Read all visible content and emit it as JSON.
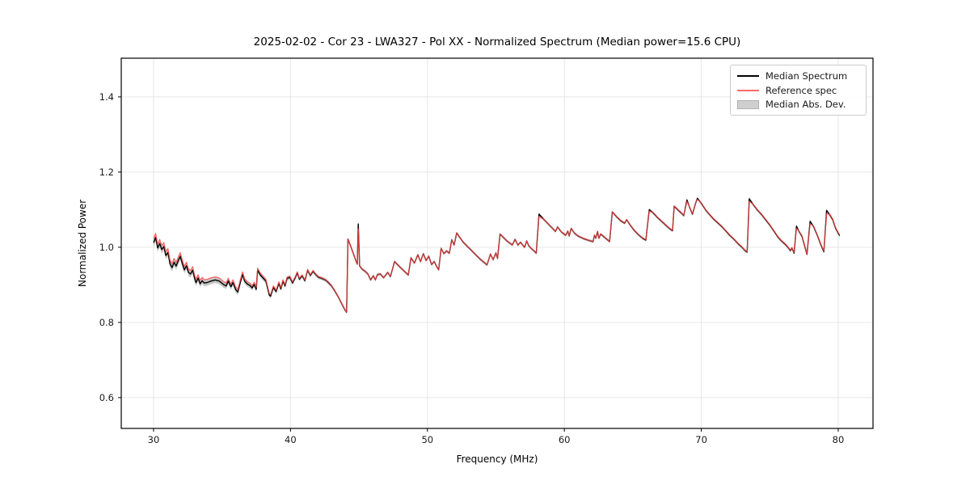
{
  "figure": {
    "bg": "#ffffff"
  },
  "chart_data": {
    "type": "line",
    "title": "2025-02-02 - Cor 23 - LWA327 - Pol XX - Normalized Spectrum (Median power=15.6 CPU)",
    "xlabel": "Frequency (MHz)",
    "ylabel": "Normalized Power",
    "xlim": [
      27.64,
      82.54
    ],
    "ylim": [
      0.518,
      1.503
    ],
    "xticks": [
      {
        "v": 30,
        "label": "30"
      },
      {
        "v": 40,
        "label": "40"
      },
      {
        "v": 50,
        "label": "50"
      },
      {
        "v": 60,
        "label": "60"
      },
      {
        "v": 70,
        "label": "70"
      },
      {
        "v": 80,
        "label": "80"
      }
    ],
    "yticks": [
      {
        "v": 0.6,
        "label": "0.6"
      },
      {
        "v": 0.8,
        "label": "0.8"
      },
      {
        "v": 1.0,
        "label": "1.0"
      },
      {
        "v": 1.2,
        "label": "1.2"
      },
      {
        "v": 1.4,
        "label": "1.4"
      }
    ],
    "grid": true,
    "grid_color": "#e6e6e6",
    "spine_color": "#000000",
    "tick_color": "#1a1a1a",
    "legend": {
      "position": "upper right",
      "entries": [
        {
          "label": "Median Spectrum",
          "type": "line",
          "color": "#000000",
          "opacity": 1
        },
        {
          "label": "Reference spec",
          "type": "line",
          "color": "#ff4545",
          "opacity": 0.8
        },
        {
          "label": "Median Abs. Dev.",
          "type": "patch",
          "fill": "#cfcfcf",
          "border": "#b0b0b0"
        }
      ]
    },
    "series": [
      {
        "name": "Median Spectrum",
        "color": "#000000",
        "width": 1.4,
        "points": [
          [
            30.0,
            1.012
          ],
          [
            30.15,
            1.026
          ],
          [
            30.3,
            0.998
          ],
          [
            30.45,
            1.01
          ],
          [
            30.6,
            0.994
          ],
          [
            30.75,
            1.002
          ],
          [
            30.9,
            0.978
          ],
          [
            31.05,
            0.986
          ],
          [
            31.2,
            0.956
          ],
          [
            31.35,
            0.946
          ],
          [
            31.5,
            0.96
          ],
          [
            31.65,
            0.95
          ],
          [
            31.8,
            0.964
          ],
          [
            31.95,
            0.976
          ],
          [
            32.1,
            0.956
          ],
          [
            32.25,
            0.94
          ],
          [
            32.4,
            0.951
          ],
          [
            32.55,
            0.933
          ],
          [
            32.7,
            0.929
          ],
          [
            32.85,
            0.939
          ],
          [
            33.0,
            0.917
          ],
          [
            33.1,
            0.906
          ],
          [
            33.25,
            0.918
          ],
          [
            33.4,
            0.903
          ],
          [
            33.55,
            0.911
          ],
          [
            33.7,
            0.905
          ],
          [
            33.9,
            0.906
          ],
          [
            34.2,
            0.91
          ],
          [
            34.5,
            0.913
          ],
          [
            34.8,
            0.91
          ],
          [
            35.1,
            0.901
          ],
          [
            35.3,
            0.897
          ],
          [
            35.45,
            0.91
          ],
          [
            35.65,
            0.895
          ],
          [
            35.8,
            0.906
          ],
          [
            36.0,
            0.887
          ],
          [
            36.15,
            0.881
          ],
          [
            36.35,
            0.908
          ],
          [
            36.5,
            0.928
          ],
          [
            36.65,
            0.91
          ],
          [
            36.85,
            0.902
          ],
          [
            37.05,
            0.898
          ],
          [
            37.2,
            0.892
          ],
          [
            37.35,
            0.901
          ],
          [
            37.5,
            0.888
          ],
          [
            37.6,
            0.939
          ],
          [
            37.8,
            0.926
          ],
          [
            38.0,
            0.918
          ],
          [
            38.2,
            0.91
          ],
          [
            38.45,
            0.873
          ],
          [
            38.55,
            0.87
          ],
          [
            38.75,
            0.893
          ],
          [
            38.95,
            0.882
          ],
          [
            39.15,
            0.904
          ],
          [
            39.3,
            0.889
          ],
          [
            39.45,
            0.91
          ],
          [
            39.6,
            0.897
          ],
          [
            39.75,
            0.917
          ],
          [
            39.95,
            0.92
          ],
          [
            40.15,
            0.905
          ],
          [
            40.35,
            0.919
          ],
          [
            40.5,
            0.932
          ],
          [
            40.65,
            0.915
          ],
          [
            40.85,
            0.924
          ],
          [
            41.05,
            0.911
          ],
          [
            41.25,
            0.939
          ],
          [
            41.45,
            0.925
          ],
          [
            41.65,
            0.936
          ],
          [
            41.85,
            0.927
          ],
          [
            42.05,
            0.92
          ],
          [
            42.3,
            0.917
          ],
          [
            42.55,
            0.913
          ],
          [
            42.8,
            0.905
          ],
          [
            43.0,
            0.897
          ],
          [
            43.25,
            0.883
          ],
          [
            43.5,
            0.867
          ],
          [
            43.75,
            0.849
          ],
          [
            44.0,
            0.832
          ],
          [
            44.1,
            0.827
          ],
          [
            44.2,
            1.022
          ],
          [
            44.35,
            1.007
          ],
          [
            44.55,
            0.987
          ],
          [
            44.75,
            0.967
          ],
          [
            44.88,
            0.955
          ],
          [
            44.95,
            1.062
          ],
          [
            45.05,
            0.95
          ],
          [
            45.25,
            0.941
          ],
          [
            45.45,
            0.936
          ],
          [
            45.65,
            0.929
          ],
          [
            45.85,
            0.913
          ],
          [
            46.05,
            0.924
          ],
          [
            46.2,
            0.913
          ],
          [
            46.35,
            0.927
          ],
          [
            46.55,
            0.929
          ],
          [
            46.8,
            0.919
          ],
          [
            47.1,
            0.933
          ],
          [
            47.3,
            0.922
          ],
          [
            47.6,
            0.962
          ],
          [
            48.0,
            0.947
          ],
          [
            48.4,
            0.933
          ],
          [
            48.6,
            0.926
          ],
          [
            48.8,
            0.972
          ],
          [
            49.05,
            0.958
          ],
          [
            49.3,
            0.98
          ],
          [
            49.5,
            0.962
          ],
          [
            49.7,
            0.983
          ],
          [
            49.9,
            0.965
          ],
          [
            50.1,
            0.976
          ],
          [
            50.3,
            0.954
          ],
          [
            50.5,
            0.962
          ],
          [
            50.7,
            0.947
          ],
          [
            50.82,
            0.94
          ],
          [
            51.0,
            0.997
          ],
          [
            51.2,
            0.983
          ],
          [
            51.4,
            0.99
          ],
          [
            51.6,
            0.984
          ],
          [
            51.78,
            1.02
          ],
          [
            51.95,
            1.006
          ],
          [
            52.14,
            1.038
          ],
          [
            52.6,
            1.014
          ],
          [
            53.2,
            0.992
          ],
          [
            53.8,
            0.97
          ],
          [
            54.35,
            0.953
          ],
          [
            54.6,
            0.982
          ],
          [
            54.8,
            0.967
          ],
          [
            55.0,
            0.985
          ],
          [
            55.12,
            0.97
          ],
          [
            55.3,
            1.035
          ],
          [
            55.8,
            1.017
          ],
          [
            56.2,
            1.006
          ],
          [
            56.4,
            1.021
          ],
          [
            56.6,
            1.006
          ],
          [
            56.8,
            1.013
          ],
          [
            57.1,
            1.0
          ],
          [
            57.25,
            1.017
          ],
          [
            57.4,
            1.004
          ],
          [
            57.6,
            0.996
          ],
          [
            57.8,
            0.99
          ],
          [
            57.95,
            0.984
          ],
          [
            58.15,
            1.088
          ],
          [
            58.5,
            1.074
          ],
          [
            58.8,
            1.063
          ],
          [
            59.25,
            1.046
          ],
          [
            59.35,
            1.042
          ],
          [
            59.5,
            1.054
          ],
          [
            59.8,
            1.04
          ],
          [
            60.1,
            1.032
          ],
          [
            60.25,
            1.043
          ],
          [
            60.35,
            1.03
          ],
          [
            60.5,
            1.05
          ],
          [
            60.75,
            1.037
          ],
          [
            61.0,
            1.03
          ],
          [
            61.4,
            1.023
          ],
          [
            61.8,
            1.018
          ],
          [
            62.1,
            1.015
          ],
          [
            62.2,
            1.032
          ],
          [
            62.3,
            1.024
          ],
          [
            62.42,
            1.042
          ],
          [
            62.52,
            1.024
          ],
          [
            62.65,
            1.035
          ],
          [
            62.85,
            1.029
          ],
          [
            63.05,
            1.023
          ],
          [
            63.3,
            1.015
          ],
          [
            63.5,
            1.094
          ],
          [
            63.8,
            1.082
          ],
          [
            64.1,
            1.071
          ],
          [
            64.4,
            1.064
          ],
          [
            64.55,
            1.073
          ],
          [
            64.85,
            1.057
          ],
          [
            65.15,
            1.043
          ],
          [
            65.45,
            1.032
          ],
          [
            65.75,
            1.023
          ],
          [
            65.95,
            1.019
          ],
          [
            66.2,
            1.1
          ],
          [
            66.5,
            1.091
          ],
          [
            66.8,
            1.079
          ],
          [
            67.1,
            1.069
          ],
          [
            67.4,
            1.059
          ],
          [
            67.7,
            1.049
          ],
          [
            67.9,
            1.044
          ],
          [
            68.02,
            1.109
          ],
          [
            68.3,
            1.099
          ],
          [
            68.55,
            1.091
          ],
          [
            68.72,
            1.084
          ],
          [
            68.95,
            1.126
          ],
          [
            69.15,
            1.106
          ],
          [
            69.35,
            1.088
          ],
          [
            69.6,
            1.119
          ],
          [
            69.72,
            1.13
          ],
          [
            70.0,
            1.117
          ],
          [
            70.3,
            1.1
          ],
          [
            70.6,
            1.087
          ],
          [
            70.9,
            1.075
          ],
          [
            71.2,
            1.065
          ],
          [
            71.5,
            1.055
          ],
          [
            71.8,
            1.043
          ],
          [
            72.1,
            1.031
          ],
          [
            72.4,
            1.021
          ],
          [
            72.7,
            1.009
          ],
          [
            73.0,
            0.999
          ],
          [
            73.2,
            0.991
          ],
          [
            73.35,
            0.987
          ],
          [
            73.5,
            1.129
          ],
          [
            73.8,
            1.113
          ],
          [
            74.1,
            1.099
          ],
          [
            74.4,
            1.087
          ],
          [
            74.7,
            1.073
          ],
          [
            75.0,
            1.059
          ],
          [
            75.3,
            1.043
          ],
          [
            75.6,
            1.027
          ],
          [
            75.9,
            1.015
          ],
          [
            76.15,
            1.007
          ],
          [
            76.35,
            0.999
          ],
          [
            76.5,
            0.991
          ],
          [
            76.62,
            0.998
          ],
          [
            76.78,
            0.984
          ],
          [
            76.95,
            1.056
          ],
          [
            77.15,
            1.041
          ],
          [
            77.35,
            1.029
          ],
          [
            77.55,
            1.003
          ],
          [
            77.72,
            0.981
          ],
          [
            77.95,
            1.069
          ],
          [
            78.2,
            1.055
          ],
          [
            78.5,
            1.029
          ],
          [
            78.75,
            1.005
          ],
          [
            78.95,
            0.988
          ],
          [
            79.15,
            1.098
          ],
          [
            79.4,
            1.085
          ],
          [
            79.6,
            1.073
          ],
          [
            79.8,
            1.051
          ],
          [
            80.0,
            1.037
          ],
          [
            80.1,
            1.031
          ]
        ]
      },
      {
        "name": "Reference spec",
        "color": "#ff4545",
        "opacity": 0.8,
        "width": 1.3,
        "derived_from": "Median Spectrum",
        "delta_breakpoints": [
          [
            30,
            0.011
          ],
          [
            33,
            0.009
          ],
          [
            35,
            0.008
          ],
          [
            37,
            0.006
          ],
          [
            39,
            0.004
          ],
          [
            41,
            0.002
          ],
          [
            43,
            0.001
          ],
          [
            44.5,
            0.0
          ],
          [
            58,
            0.0
          ],
          [
            66,
            0.001
          ],
          [
            73,
            0.001
          ],
          [
            80.1,
            0.002
          ]
        ],
        "peak_caps": [
          [
            44.95,
            1.049
          ],
          [
            58.15,
            1.082
          ],
          [
            66.2,
            1.096
          ],
          [
            68.95,
            1.122
          ],
          [
            69.72,
            1.127
          ],
          [
            73.5,
            1.122
          ],
          [
            76.95,
            1.05
          ],
          [
            77.95,
            1.062
          ],
          [
            79.15,
            1.089
          ]
        ]
      },
      {
        "name": "Median Abs. Dev.",
        "type": "band",
        "fill": "#808080",
        "fill_opacity": 0.45,
        "halfwidth_breakpoints": [
          [
            30,
            0.011
          ],
          [
            33,
            0.009
          ],
          [
            36,
            0.008
          ],
          [
            39,
            0.006
          ],
          [
            42,
            0.005
          ],
          [
            45,
            0.004
          ],
          [
            60,
            0.0035
          ],
          [
            80.1,
            0.0035
          ]
        ]
      }
    ]
  }
}
